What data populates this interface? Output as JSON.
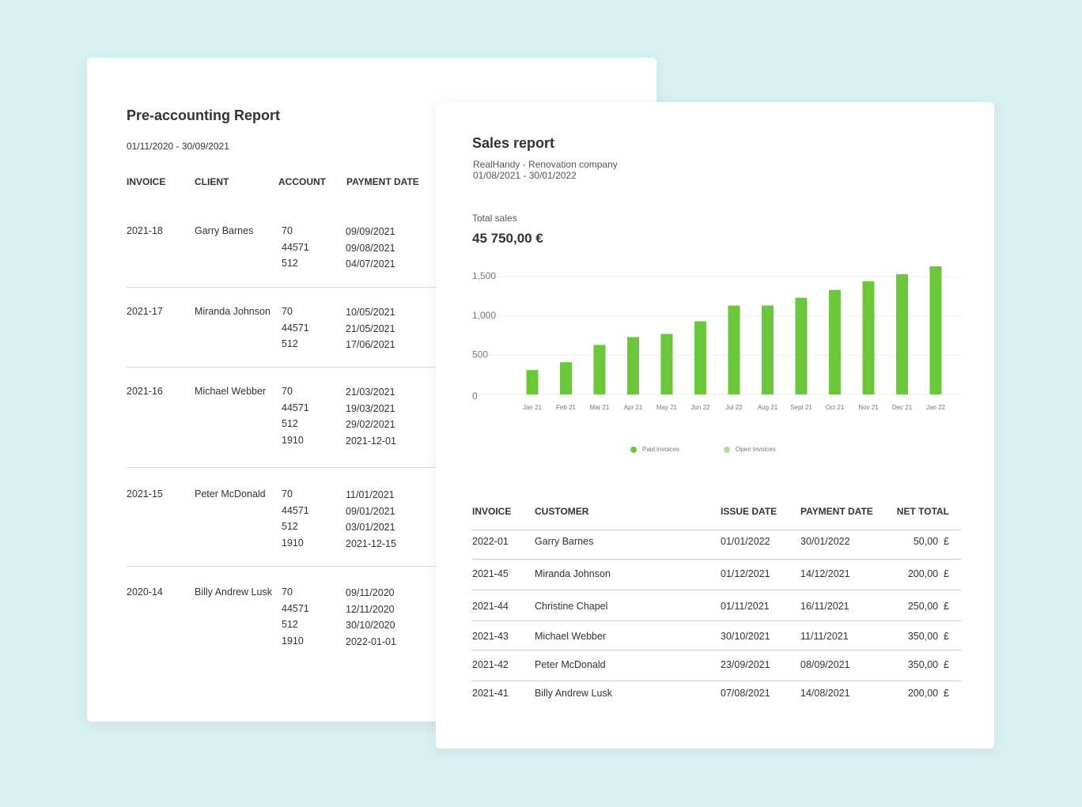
{
  "pre_accounting": {
    "title": "Pre-accounting Report",
    "period": "01/11/2020 - 30/09/2021",
    "headers": [
      "INVOICE",
      "CLIENT",
      "ACCOUNT",
      "PAYMENT DATE"
    ],
    "rows": [
      {
        "invoice": "2021-18",
        "client": "Garry Barnes",
        "accounts": [
          "70",
          "44571",
          "512"
        ],
        "dates": [
          "09/09/2021",
          "09/08/2021",
          "04/07/2021"
        ]
      },
      {
        "invoice": "2021-17",
        "client": "Miranda Johnson",
        "accounts": [
          "70",
          "44571",
          "512"
        ],
        "dates": [
          "10/05/2021",
          "21/05/2021",
          "17/06/2021"
        ]
      },
      {
        "invoice": "2021-16",
        "client": "Michael Webber",
        "accounts": [
          "70",
          "44571",
          "512",
          "1910"
        ],
        "dates": [
          "21/03/2021",
          "19/03/2021",
          "29/02/2021",
          "2021-12-01"
        ]
      },
      {
        "invoice": "2021-15",
        "client": "Peter McDonald",
        "accounts": [
          "70",
          "44571",
          "512",
          "1910"
        ],
        "dates": [
          "11/01/2021",
          "09/01/2021",
          "03/01/2021",
          "2021-12-15"
        ]
      },
      {
        "invoice": "2020-14",
        "client": "Billy Andrew Lusk",
        "accounts": [
          "70",
          "44571",
          "512",
          "1910"
        ],
        "dates": [
          "09/11/2020",
          "12/11/2020",
          "30/10/2020",
          "2022-01-01"
        ]
      }
    ]
  },
  "sales_report": {
    "title": "Sales report",
    "company": "RealHandy - Renovation company",
    "period": "01/08/2021 - 30/01/2022",
    "total_label": "Total sales",
    "total": "45 750,00 €",
    "chart": {
      "type": "bar",
      "categories": [
        "Jan 21",
        "Feb 21",
        "Mar 21",
        "Apr 21",
        "May 21",
        "Jun 22",
        "Jul 22",
        "Aug 21",
        "Sept 21",
        "Oct 21",
        "Nov 21",
        "Dec 21",
        "Jan 22"
      ],
      "series": [
        {
          "name": "Paid invoices",
          "color": "#6cc63a",
          "values": [
            310,
            410,
            630,
            730,
            770,
            930,
            1130,
            1130,
            1230,
            1330,
            1440,
            1530,
            1630
          ]
        }
      ],
      "legend": [
        {
          "name": "Paid invoices",
          "color": "#6cc63a"
        },
        {
          "name": "Open invoices",
          "color": "#a9e39a"
        }
      ],
      "ylim": [
        0,
        1700
      ],
      "yticks": [
        0,
        500,
        {
          "value": 1000,
          "label": "1,000"
        },
        {
          "value": 1500,
          "label": "1,500"
        }
      ],
      "grid": true
    },
    "table": {
      "headers": [
        "INVOICE",
        "CUSTOMER",
        "ISSUE DATE",
        "PAYMENT DATE",
        "NET TOTAL"
      ],
      "rows": [
        [
          "2022-01",
          "Garry Barnes",
          "01/01/2022",
          "30/01/2022",
          "50,00  £"
        ],
        [
          "2021-45",
          "Miranda Johnson",
          "01/12/2021",
          "14/12/2021",
          "200,00  £"
        ],
        [
          "2021-44",
          "Christine Chapel",
          "01/11/2021",
          "16/11/2021",
          "250,00  £"
        ],
        [
          "2021-43",
          "Michael Webber",
          "30/10/2021",
          "11/11/2021",
          "350,00  £"
        ],
        [
          "2021-42",
          "Peter McDonald",
          "23/09/2021",
          "08/09/2021",
          "350,00  £"
        ],
        [
          "2021-41",
          "Billy Andrew Lusk",
          "07/08/2021",
          "14/08/2021",
          "200,00  £"
        ]
      ]
    }
  }
}
